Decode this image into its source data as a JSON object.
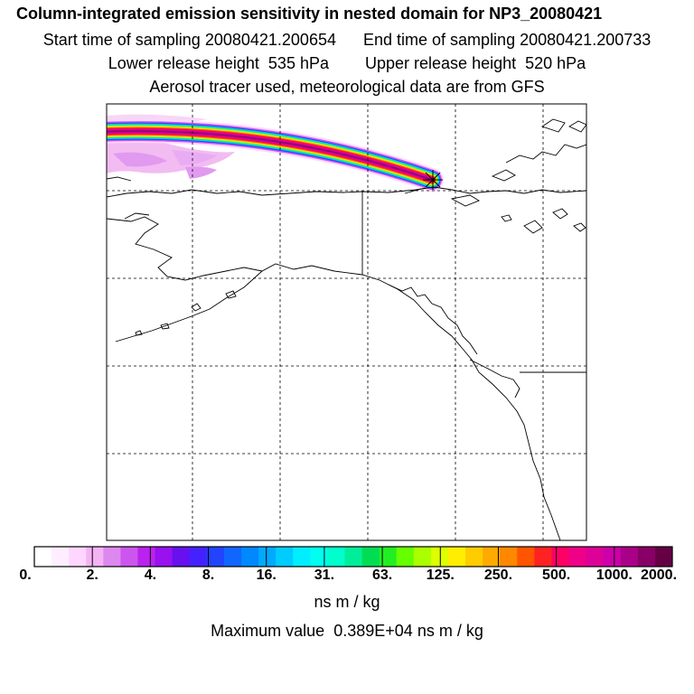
{
  "title": {
    "main": "Column-integrated emission sensitivity in nested domain for NP3_20080421",
    "start_label": "Start time of sampling",
    "start_value": "20080421.200654",
    "end_label": "End time of sampling",
    "end_value": "20080421.200733",
    "lower_label": "Lower release height",
    "lower_value": "535 hPa",
    "upper_label": "Upper release height",
    "upper_value": "520 hPa",
    "tracer_note": "Aerosol tracer used, meteorological data are from GFS"
  },
  "colorbar": {
    "tick_labels": [
      "0.",
      "2.",
      "4.",
      "8.",
      "16.",
      "31.",
      "63.",
      "125.",
      "250.",
      "500.",
      "1000.",
      "2000."
    ],
    "units": "ns m / kg",
    "colors": [
      "#ffffff",
      "#ffeeff",
      "#ffd6ff",
      "#f4b3f4",
      "#dd88ee",
      "#cc55ee",
      "#bb22ee",
      "#9911ee",
      "#6611ee",
      "#4422ff",
      "#2244ff",
      "#1166ff",
      "#0088ff",
      "#00aaff",
      "#00ccff",
      "#00eeff",
      "#00ffee",
      "#00ffcc",
      "#00ee99",
      "#00dd55",
      "#22ee22",
      "#66ff00",
      "#aaff00",
      "#ddff00",
      "#ffee00",
      "#ffcc00",
      "#ffaa00",
      "#ff8800",
      "#ff5500",
      "#ff2222",
      "#ff0066",
      "#ee0088",
      "#dd0099",
      "#cc00aa",
      "#aa0088",
      "#880066",
      "#660044"
    ]
  },
  "maximum": {
    "label": "Maximum value",
    "value": "0.389E+04",
    "units": "ns m / kg"
  },
  "map": {
    "release_marker": "release-location"
  }
}
